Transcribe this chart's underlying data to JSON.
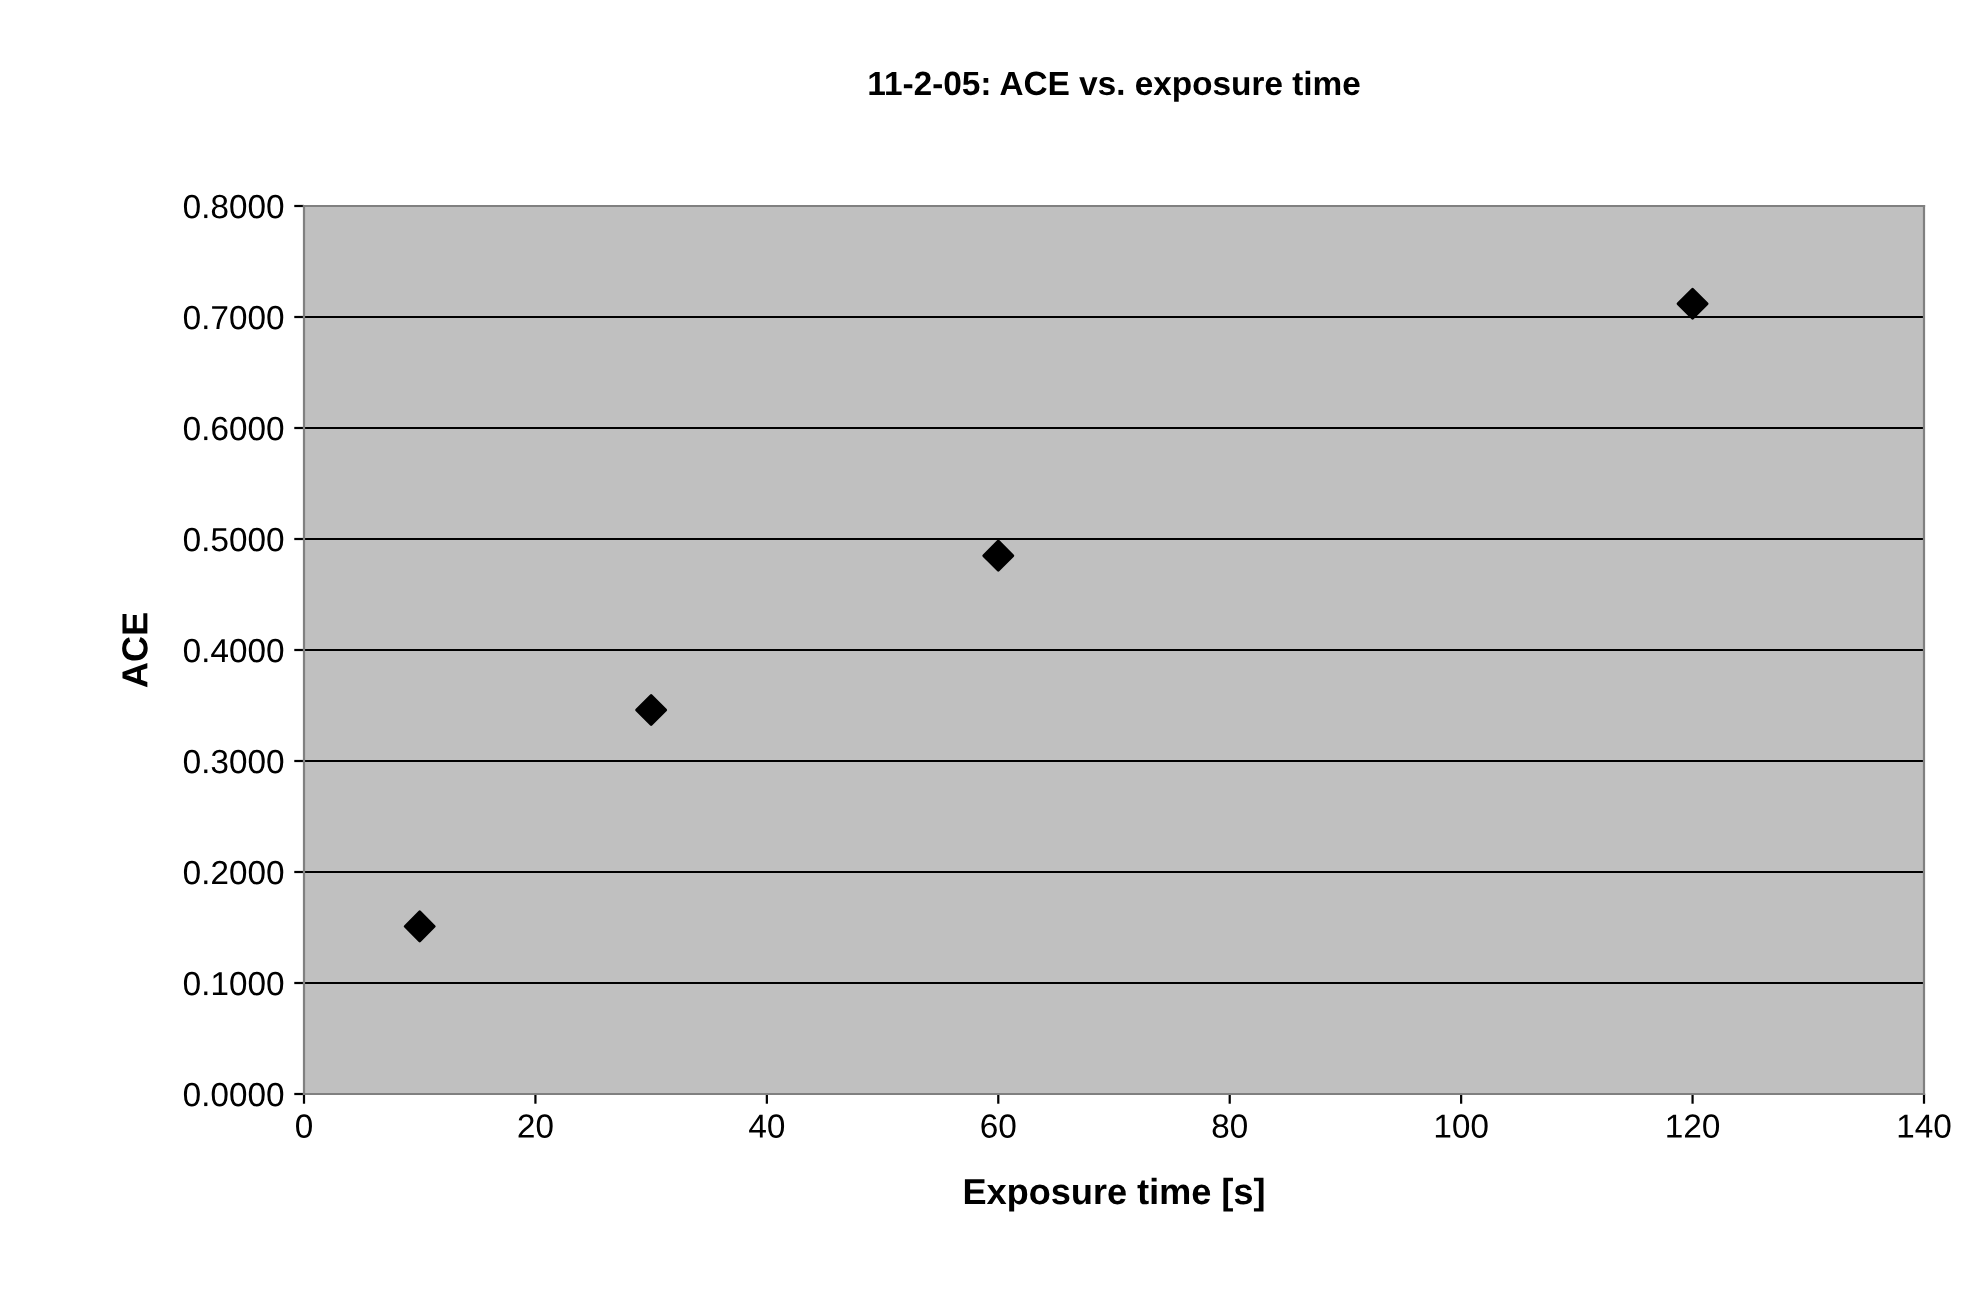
{
  "chart_data": {
    "type": "scatter",
    "title": "11-2-05: ACE vs. exposure time",
    "xlabel": "Exposure time [s]",
    "ylabel": "ACE",
    "x": [
      10,
      30,
      60,
      120
    ],
    "series": [
      {
        "color": "#000000",
        "values": [
          0.151,
          0.346,
          0.485,
          0.712
        ]
      }
    ],
    "xlim": [
      0,
      140
    ],
    "xticks": [
      0,
      20,
      40,
      60,
      80,
      100,
      120,
      140
    ],
    "ylim": [
      0,
      0.8
    ],
    "yticks": [
      {
        "value": 0,
        "label": "0.0000"
      },
      {
        "value": 0.1,
        "label": "0.1000"
      },
      {
        "value": 0.2,
        "label": "0.2000"
      },
      {
        "value": 0.3,
        "label": "0.3000"
      },
      {
        "value": 0.4,
        "label": "0.4000"
      },
      {
        "value": 0.5,
        "label": "0.5000"
      },
      {
        "value": 0.6,
        "label": "0.6000"
      },
      {
        "value": 0.7,
        "label": "0.7000"
      },
      {
        "value": 0.8,
        "label": "0.8000"
      }
    ],
    "grid": "y",
    "marker": "diamond",
    "legend": false
  }
}
